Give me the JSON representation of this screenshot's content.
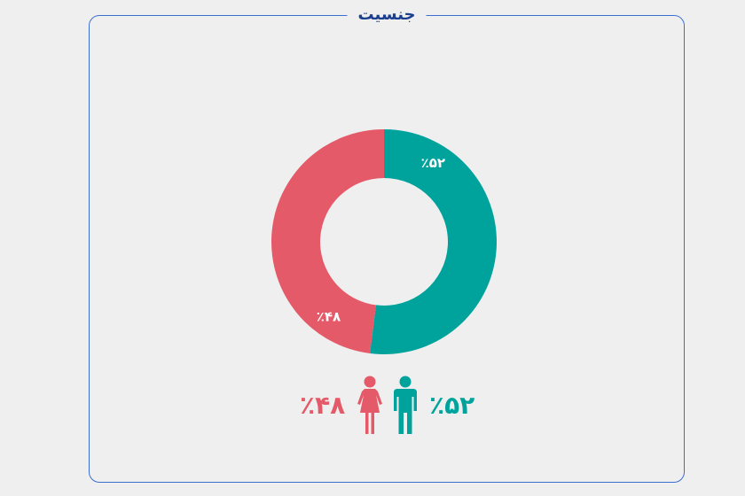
{
  "title": "جنسیت",
  "colors": {
    "male": "#00a39b",
    "female": "#e45a68",
    "frame_border": "#3b6fd0",
    "title": "#1b3f8f"
  },
  "chart_data": {
    "type": "pie",
    "donut": true,
    "slices": [
      {
        "label": "٪۵۲",
        "value": 52,
        "color": "#00a39b",
        "icon": "male-person-icon"
      },
      {
        "label": "٪۴۸",
        "value": 48,
        "color": "#e45a68",
        "icon": "female-person-icon"
      }
    ],
    "start_angle": "top",
    "direction": "clockwise"
  },
  "legend": {
    "male_text": "٪۵۲",
    "female_text": "٪۴۸"
  }
}
